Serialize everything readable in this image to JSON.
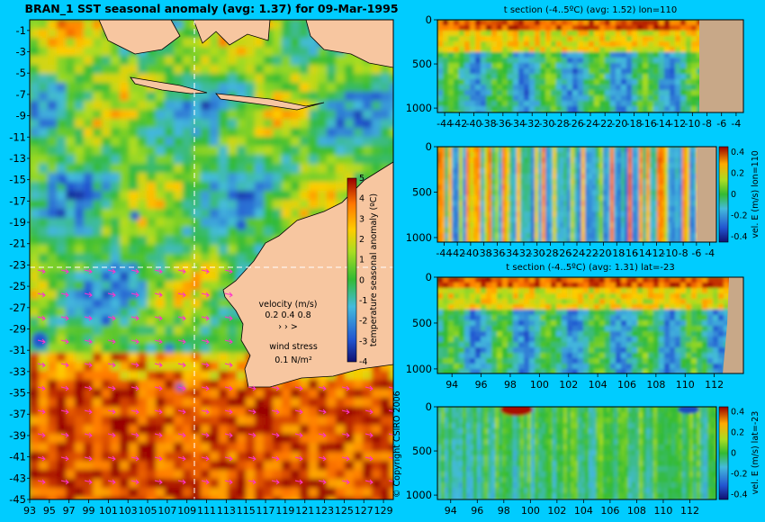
{
  "colors": {
    "background": "#00ccff",
    "land": "#f7c6a0",
    "land_sections": "#c8a888",
    "cool": "#2255d0",
    "neutral": "#33bb33",
    "warm": "#ffcc00",
    "hot": "#990000"
  },
  "copyright": "© Copyright CSIRO 2006",
  "legend_text": {
    "velocity_label": "velocity (m/s)",
    "velocity_scale": "0.2 0.4 0.8",
    "velocity_arrows": "›  ›  >",
    "wind_label": "wind stress",
    "wind_value": "0.1 N/m²"
  },
  "chart_data": [
    {
      "type": "heatmap",
      "name": "sst-map",
      "title": "BRAN_1  SST seasonal anomaly  (avg: 1.37) for 09-Mar-1995",
      "x_ticks": [
        "93",
        "95",
        "97",
        "99",
        "101",
        "103",
        "105",
        "107",
        "109",
        "111",
        "113",
        "115",
        "117",
        "119",
        "121",
        "123",
        "125",
        "127",
        "129"
      ],
      "y_ticks": [
        "-1",
        "-3",
        "-5",
        "-7",
        "-9",
        "-11",
        "-13",
        "-15",
        "-17",
        "-19",
        "-21",
        "-23",
        "-25",
        "-27",
        "-29",
        "-31",
        "-33",
        "-35",
        "-37",
        "-39",
        "-41",
        "-43",
        "-45"
      ],
      "xlim": [
        93,
        130
      ],
      "ylim": [
        -45,
        0
      ],
      "crosshair": {
        "lon": 110,
        "lat": -23
      },
      "colorbar": {
        "label": "temperature seasonal anomaly (ºC)",
        "ticks": [
          "5",
          "4",
          "3",
          "2",
          "1",
          "0",
          "-1",
          "-2",
          "-3",
          "-4"
        ],
        "range": [
          -4,
          5
        ]
      }
    },
    {
      "type": "heatmap",
      "name": "t-section-lon110",
      "title": "t section (-4..5ºC) (avg: 1.52) lon=110",
      "x_ticks": [
        "-44",
        "-42",
        "-40",
        "-38",
        "-36",
        "-34",
        "-32",
        "-30",
        "-28",
        "-26",
        "-24",
        "-22",
        "-20",
        "-18",
        "-16",
        "-14",
        "-12",
        "-10",
        "-8",
        "-6",
        "-4"
      ],
      "y_ticks": [
        "0",
        "500",
        "1000"
      ],
      "xlim": [
        -45,
        -3
      ],
      "ylim": [
        1050,
        0
      ]
    },
    {
      "type": "heatmap",
      "name": "vel-e-section-lon110",
      "title": "",
      "x_ticks": [
        "-44",
        "-42",
        "-40",
        "-38",
        "-36",
        "-34",
        "-32",
        "-30",
        "-28",
        "-26",
        "-24",
        "-22",
        "-20",
        "-18",
        "-16",
        "-14",
        "-12",
        "-10",
        "-8",
        "-6",
        "-4"
      ],
      "y_ticks": [
        "0",
        "500",
        "1000"
      ],
      "xlim": [
        -45,
        -3
      ],
      "ylim": [
        1050,
        0
      ],
      "colorbar": {
        "label": "vel. E (m/s) lon=110",
        "ticks": [
          "0.4",
          "0.2",
          "0",
          "-0.2",
          "-0.4"
        ],
        "range": [
          -0.45,
          0.45
        ]
      }
    },
    {
      "type": "heatmap",
      "name": "t-section-lat-23",
      "title": "t section (-4..5ºC) (avg: 1.31) lat=-23",
      "x_ticks": [
        "94",
        "96",
        "98",
        "100",
        "102",
        "104",
        "106",
        "108",
        "110",
        "112"
      ],
      "y_ticks": [
        "0",
        "500",
        "1000"
      ],
      "xlim": [
        93,
        114
      ],
      "ylim": [
        1050,
        0
      ]
    },
    {
      "type": "heatmap",
      "name": "vel-e-section-lat-23",
      "title": "",
      "x_ticks": [
        "94",
        "96",
        "98",
        "100",
        "102",
        "104",
        "106",
        "108",
        "110",
        "112"
      ],
      "y_ticks": [
        "0",
        "500",
        "1000"
      ],
      "xlim": [
        93,
        114
      ],
      "ylim": [
        1050,
        0
      ],
      "colorbar": {
        "label": "vel. E (m/s) lat=-23",
        "ticks": [
          "0.4",
          "0.2",
          "0",
          "-0.2",
          "-0.4"
        ],
        "range": [
          -0.45,
          0.45
        ]
      }
    }
  ]
}
